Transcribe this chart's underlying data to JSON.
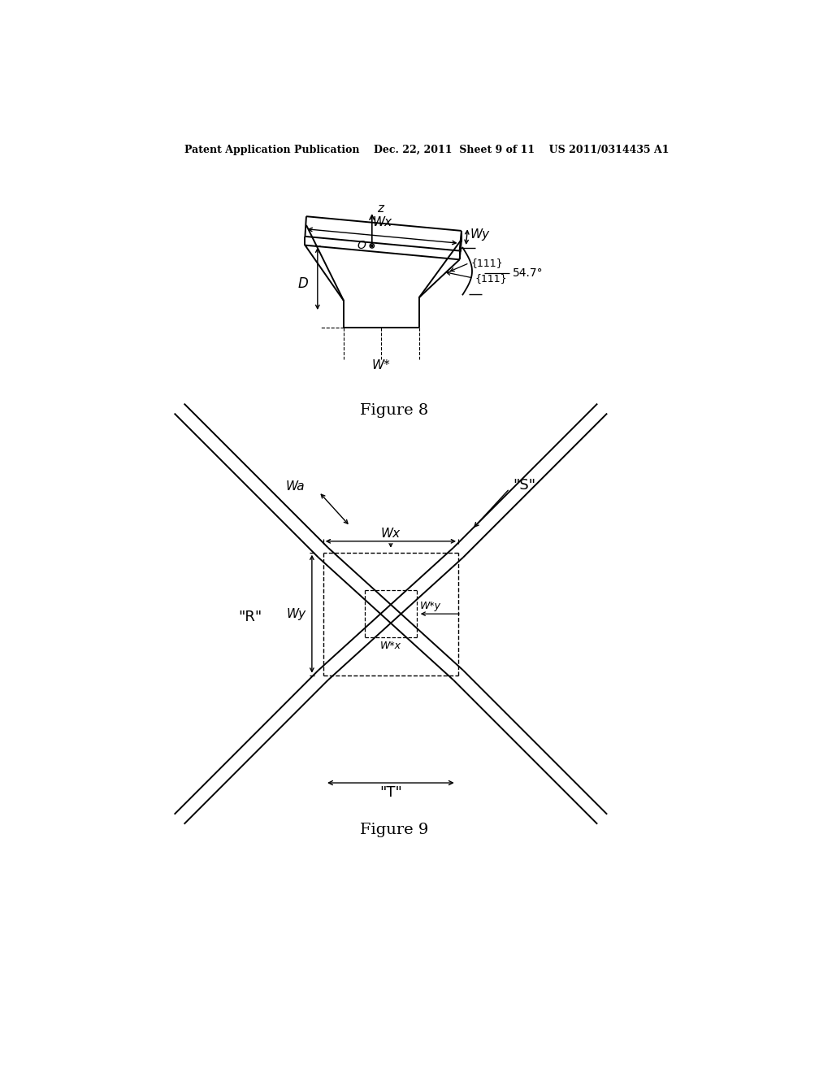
{
  "bg_color": "#ffffff",
  "text_color": "#000000",
  "line_color": "#000000",
  "header_text": "Patent Application Publication    Dec. 22, 2011  Sheet 9 of 11    US 2011/0314435 A1",
  "fig8_caption": "Figure 8",
  "fig9_caption": "Figure 9"
}
